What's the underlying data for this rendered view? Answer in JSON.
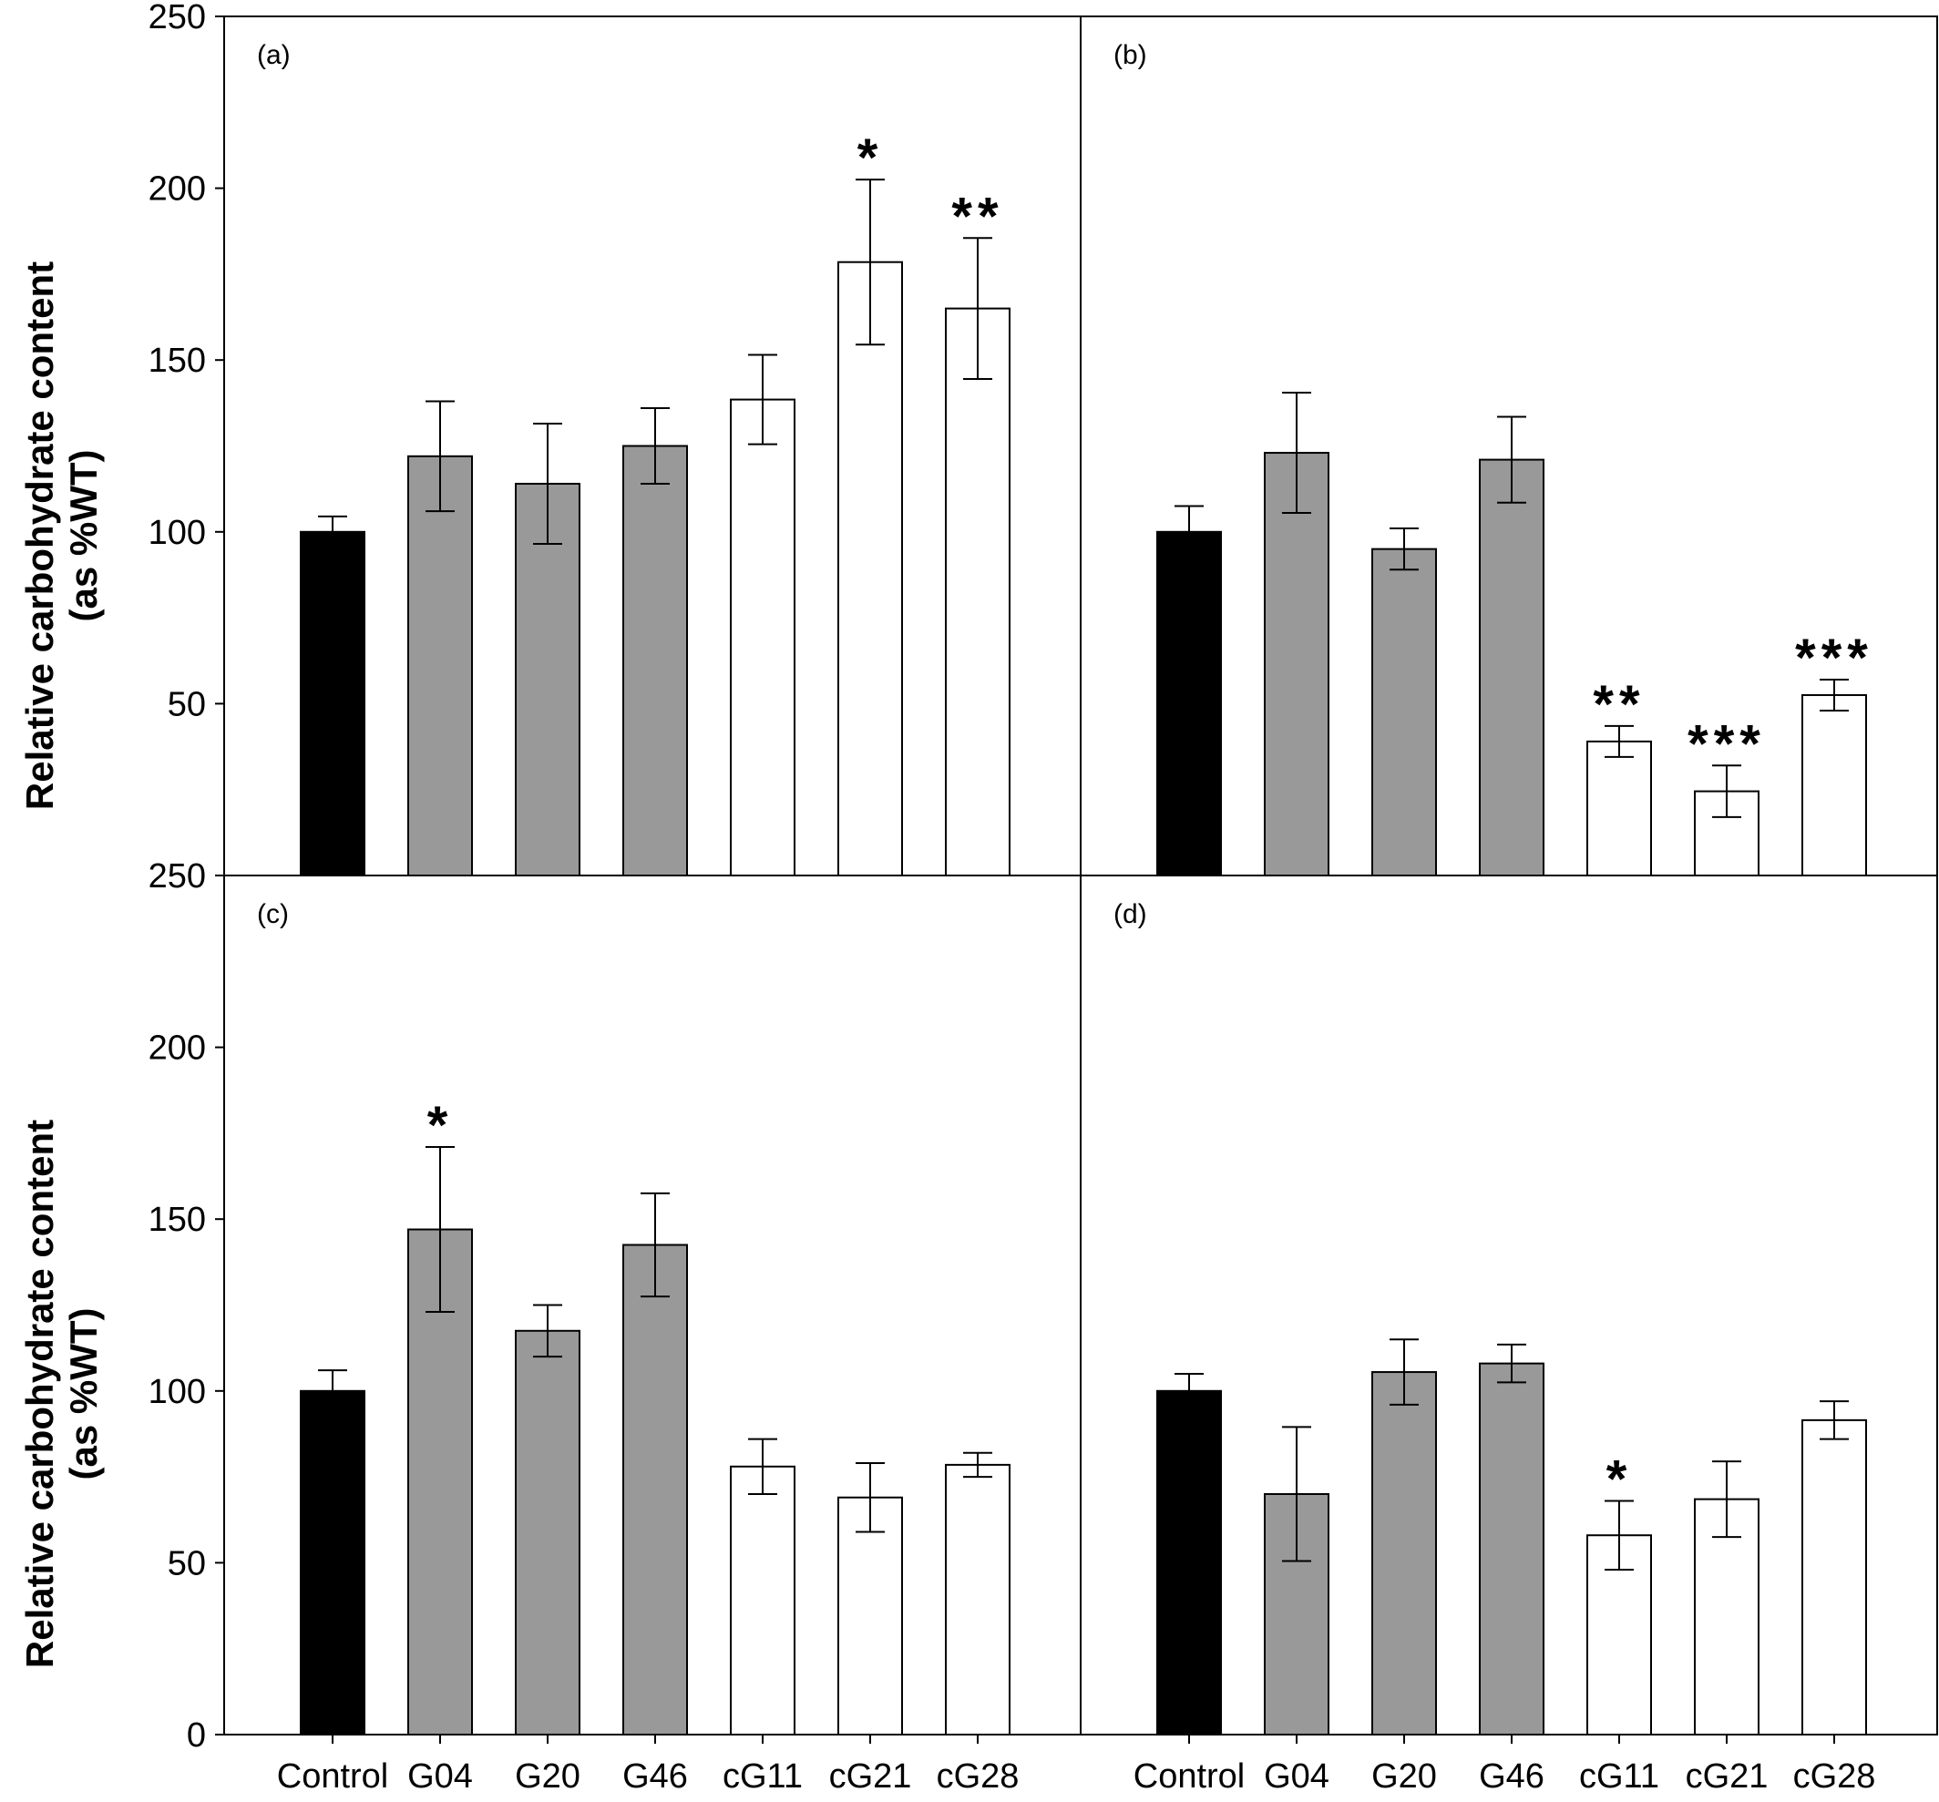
{
  "chart_data": {
    "type": "bar",
    "layout": "2x2 panels, shared axes",
    "ylabel_lines": [
      "Relative carbohydrate content",
      "(as %WT)"
    ],
    "ylim": [
      0,
      250
    ],
    "yticks_top": [
      "50",
      "100",
      "150",
      "200",
      "250"
    ],
    "yticks_bottom": [
      "0",
      "50",
      "100",
      "150",
      "200",
      "250"
    ],
    "categories": [
      "Control",
      "G04",
      "G20",
      "G46",
      "cG11",
      "cG21",
      "cG28"
    ],
    "bar_colors": [
      "#000000",
      "#999999",
      "#999999",
      "#999999",
      "#ffffff",
      "#ffffff",
      "#ffffff"
    ],
    "grid": false,
    "panels": [
      {
        "label": "(a)",
        "values": [
          100,
          122,
          114,
          125,
          138.5,
          178.5,
          165
        ],
        "errors": [
          4.5,
          16,
          17.5,
          11,
          13,
          24,
          20.5
        ],
        "significance": [
          "",
          "",
          "",
          "",
          "",
          "*",
          "**"
        ]
      },
      {
        "label": "(b)",
        "values": [
          100,
          123,
          95,
          121,
          39,
          24.5,
          52.5
        ],
        "errors": [
          7.5,
          17.5,
          6,
          12.5,
          4.5,
          7.5,
          4.5
        ],
        "significance": [
          "",
          "",
          "",
          "",
          "**",
          "***",
          "***"
        ]
      },
      {
        "label": "(c)",
        "values": [
          100,
          147,
          117.5,
          142.5,
          78,
          69,
          78.5
        ],
        "errors": [
          6,
          24,
          7.5,
          15,
          8,
          10,
          3.5
        ],
        "significance": [
          "",
          "*",
          "",
          "",
          "",
          "",
          ""
        ]
      },
      {
        "label": "(d)",
        "values": [
          100,
          70,
          105.5,
          108,
          58,
          68.5,
          91.5
        ],
        "errors": [
          5,
          19.5,
          9.5,
          5.5,
          10,
          11,
          5.5
        ],
        "significance": [
          "",
          "",
          "",
          "",
          "*",
          "",
          ""
        ]
      }
    ]
  }
}
